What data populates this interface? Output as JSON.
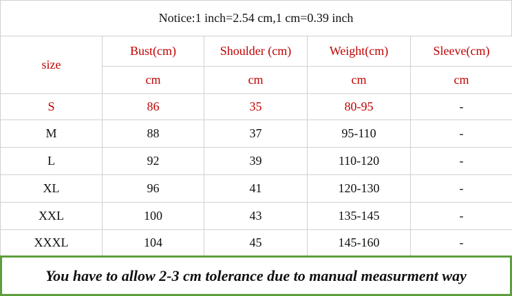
{
  "notice": "Notice:1 inch=2.54 cm,1 cm=0.39 inch",
  "table": {
    "size_label": "size",
    "header": [
      "Bust(cm)",
      "Shoulder (cm)",
      "Weight(cm)",
      "Sleeve(cm)"
    ],
    "units": [
      "cm",
      "cm",
      "cm",
      "cm"
    ],
    "rows": [
      [
        "S",
        "86",
        "35",
        "80-95",
        "-"
      ],
      [
        "M",
        "88",
        "37",
        "95-110",
        "-"
      ],
      [
        "L",
        "92",
        "39",
        "110-120",
        "-"
      ],
      [
        "XL",
        "96",
        "41",
        "120-130",
        "-"
      ],
      [
        "XXL",
        "100",
        "43",
        "135-145",
        "-"
      ],
      [
        "XXXL",
        "104",
        "45",
        "145-160",
        "-"
      ]
    ]
  },
  "footer": "You have to allow 2-3 cm tolerance due to manual measurment way"
}
